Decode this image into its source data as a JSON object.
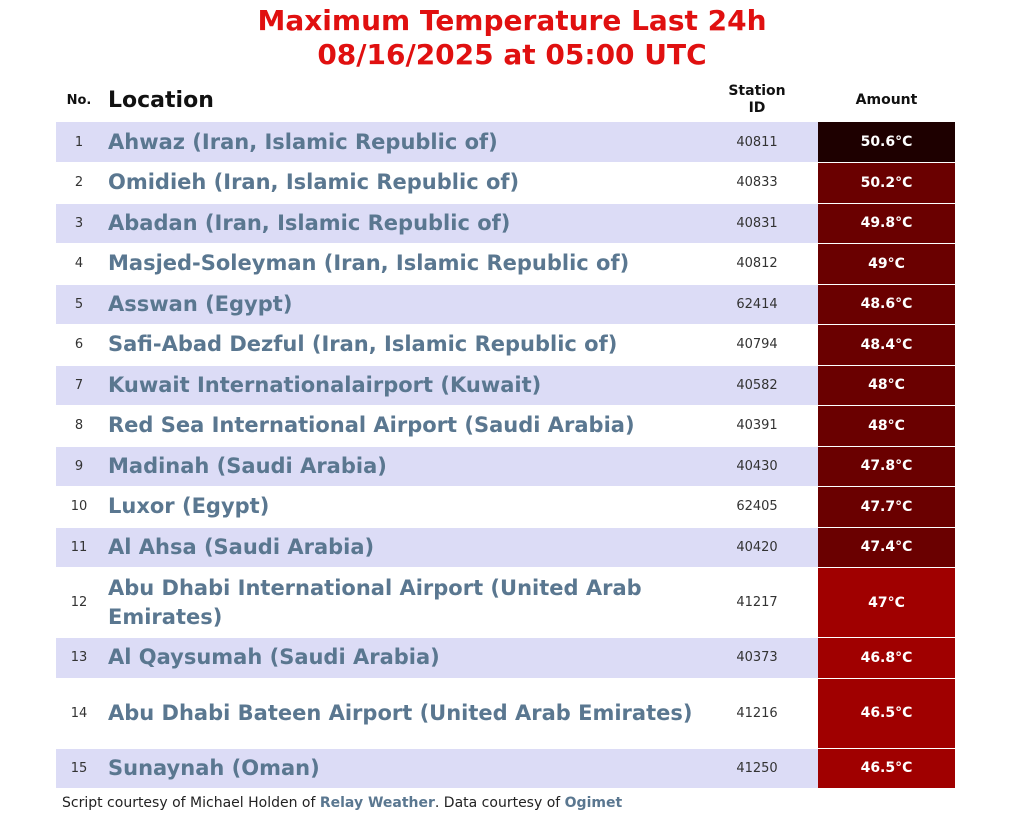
{
  "title": "Maximum Temperature Last 24h",
  "subtitle": "08/16/2025 at 05:00 UTC",
  "columns": {
    "no": "No.",
    "location": "Location",
    "station_line1": "Station",
    "station_line2": "ID",
    "amount": "Amount"
  },
  "colors": {
    "title": "#e01010",
    "location_text": "#5a7790",
    "row_alt": "#dcdcf6"
  },
  "rows": [
    {
      "no": "1",
      "location": "Ahwaz (Iran, Islamic Republic of)",
      "station": "40811",
      "amount": "50.6°C",
      "color": "#1e0000"
    },
    {
      "no": "2",
      "location": "Omidieh (Iran, Islamic Republic of)",
      "station": "40833",
      "amount": "50.2°C",
      "color": "#6a0000"
    },
    {
      "no": "3",
      "location": "Abadan (Iran, Islamic Republic of)",
      "station": "40831",
      "amount": "49.8°C",
      "color": "#6a0000"
    },
    {
      "no": "4",
      "location": "Masjed-Soleyman (Iran, Islamic Republic of)",
      "station": "40812",
      "amount": "49°C",
      "color": "#6a0000"
    },
    {
      "no": "5",
      "location": "Asswan (Egypt)",
      "station": "62414",
      "amount": "48.6°C",
      "color": "#6a0000"
    },
    {
      "no": "6",
      "location": "Safi-Abad Dezful (Iran, Islamic Republic of)",
      "station": "40794",
      "amount": "48.4°C",
      "color": "#6a0000"
    },
    {
      "no": "7",
      "location": "Kuwait Internationalairport (Kuwait)",
      "station": "40582",
      "amount": "48°C",
      "color": "#6a0000"
    },
    {
      "no": "8",
      "location": "Red Sea International Airport (Saudi Arabia)",
      "station": "40391",
      "amount": "48°C",
      "color": "#6a0000"
    },
    {
      "no": "9",
      "location": "Madinah (Saudi Arabia)",
      "station": "40430",
      "amount": "47.8°C",
      "color": "#6a0000"
    },
    {
      "no": "10",
      "location": "Luxor (Egypt)",
      "station": "62405",
      "amount": "47.7°C",
      "color": "#6a0000"
    },
    {
      "no": "11",
      "location": "Al Ahsa (Saudi Arabia)",
      "station": "40420",
      "amount": "47.4°C",
      "color": "#6a0000"
    },
    {
      "no": "12",
      "location": "Abu Dhabi International Airport (United Arab Emirates)",
      "station": "41217",
      "amount": "47°C",
      "color": "#a00000"
    },
    {
      "no": "13",
      "location": "Al Qaysumah (Saudi Arabia)",
      "station": "40373",
      "amount": "46.8°C",
      "color": "#a00000"
    },
    {
      "no": "14",
      "location": "Abu Dhabi Bateen Airport (United Arab Emirates)",
      "station": "41216",
      "amount": "46.5°C",
      "color": "#a00000"
    },
    {
      "no": "15",
      "location": "Sunaynah (Oman)",
      "station": "41250",
      "amount": "46.5°C",
      "color": "#a00000"
    }
  ],
  "footer": {
    "prefix": "Script courtesy of  Michael Holden of ",
    "relay": "Relay Weather",
    "middle": ". Data courtesy of ",
    "ogimet": "Ogimet"
  }
}
